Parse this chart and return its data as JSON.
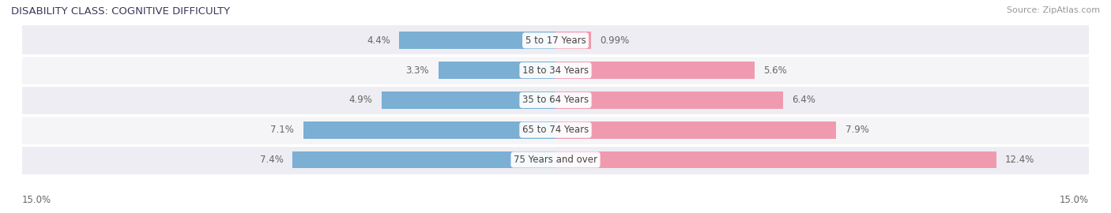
{
  "title": "DISABILITY CLASS: COGNITIVE DIFFICULTY",
  "source": "Source: ZipAtlas.com",
  "categories": [
    "5 to 17 Years",
    "18 to 34 Years",
    "35 to 64 Years",
    "65 to 74 Years",
    "75 Years and over"
  ],
  "male_values": [
    4.4,
    3.3,
    4.9,
    7.1,
    7.4
  ],
  "female_values": [
    0.99,
    5.6,
    6.4,
    7.9,
    12.4
  ],
  "xlim": 15.0,
  "male_color": "#7bafd4",
  "female_color": "#f09ab0",
  "bar_height": 0.58,
  "bg_colors": [
    "#ededf3",
    "#f5f5f8",
    "#ededf3",
    "#f5f5f8",
    "#ededf3"
  ],
  "label_color": "#666666",
  "title_color": "#3a3a5c",
  "separator_color": "#ffffff"
}
